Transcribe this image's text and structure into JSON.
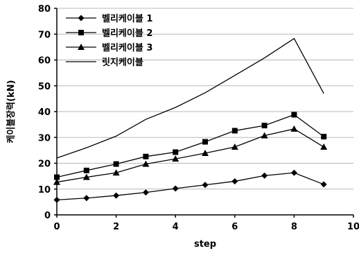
{
  "chart_data": {
    "type": "line",
    "xlabel": "step",
    "ylabel": "케이블장력(kN)",
    "xlim": [
      0,
      10
    ],
    "ylim": [
      0,
      80
    ],
    "xticks": [
      0,
      2,
      4,
      6,
      8,
      10
    ],
    "yticks": [
      0,
      10,
      20,
      30,
      40,
      50,
      60,
      70,
      80
    ],
    "grid": "horizontal",
    "legend_position": "top-left",
    "series": [
      {
        "name": "벨리케이블 1",
        "marker": "diamond",
        "x": [
          0,
          1,
          2,
          3,
          4,
          5,
          6,
          7,
          8,
          9
        ],
        "y": [
          5.8,
          6.5,
          7.5,
          8.7,
          10.2,
          11.6,
          13.0,
          15.2,
          16.3,
          11.8
        ]
      },
      {
        "name": "벨리케이블 2",
        "marker": "square",
        "x": [
          0,
          1,
          2,
          3,
          4,
          5,
          6,
          7,
          8,
          9
        ],
        "y": [
          14.6,
          17.2,
          19.7,
          22.6,
          24.3,
          28.3,
          32.6,
          34.6,
          38.8,
          30.3
        ]
      },
      {
        "name": "벨리케이블 3",
        "marker": "triangle",
        "x": [
          0,
          1,
          2,
          3,
          4,
          5,
          6,
          7,
          8,
          9
        ],
        "y": [
          12.7,
          14.6,
          16.3,
          19.7,
          21.7,
          23.9,
          26.3,
          30.7,
          33.3,
          26.3
        ]
      },
      {
        "name": "릿지케이블",
        "marker": "none",
        "x": [
          0,
          1,
          2,
          3,
          4,
          5,
          6,
          7,
          8,
          9
        ],
        "y": [
          22.0,
          26.0,
          30.5,
          37.0,
          41.6,
          47.3,
          54.0,
          60.8,
          68.3,
          47.0
        ]
      }
    ]
  }
}
